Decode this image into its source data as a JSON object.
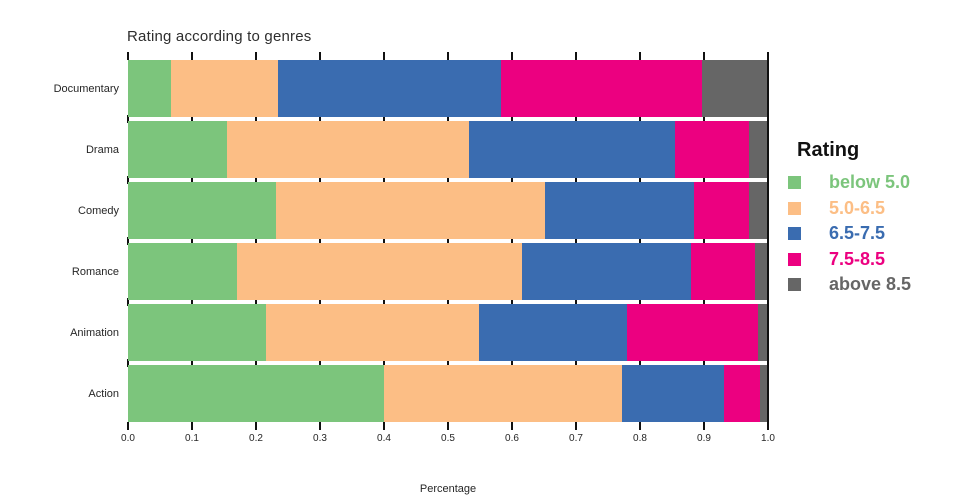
{
  "chart_data": {
    "type": "bar",
    "orientation": "horizontal",
    "stacked": true,
    "title": "Rating according to genres",
    "xlabel": "Percentage",
    "ylabel": "",
    "xlim": [
      0.0,
      1.0
    ],
    "x_ticks": [
      "0.0",
      "0.1",
      "0.2",
      "0.3",
      "0.4",
      "0.5",
      "0.6",
      "0.7",
      "0.8",
      "0.9",
      "1.0"
    ],
    "grid": "off",
    "legend_position": "right",
    "legend_title": "Rating",
    "categories": [
      "Documentary",
      "Drama",
      "Comedy",
      "Romance",
      "Animation",
      "Action"
    ],
    "series": [
      {
        "name": "below 5.0",
        "color": "#7cc57c",
        "values": [
          0.067,
          0.155,
          0.232,
          0.17,
          0.216,
          0.4
        ]
      },
      {
        "name": "5.0-6.5",
        "color": "#fcbe85",
        "values": [
          0.168,
          0.378,
          0.42,
          0.446,
          0.333,
          0.372
        ]
      },
      {
        "name": "6.5-7.5",
        "color": "#3a6cb0",
        "values": [
          0.348,
          0.322,
          0.233,
          0.263,
          0.23,
          0.159
        ]
      },
      {
        "name": "7.5-8.5",
        "color": "#ec0080",
        "values": [
          0.314,
          0.115,
          0.085,
          0.1,
          0.206,
          0.056
        ]
      },
      {
        "name": "above 8.5",
        "color": "#666666",
        "values": [
          0.103,
          0.03,
          0.03,
          0.021,
          0.015,
          0.013
        ]
      }
    ],
    "colors": {
      "tick": "#111111",
      "text": "#262626",
      "title_text": "#2e2e2e"
    }
  }
}
